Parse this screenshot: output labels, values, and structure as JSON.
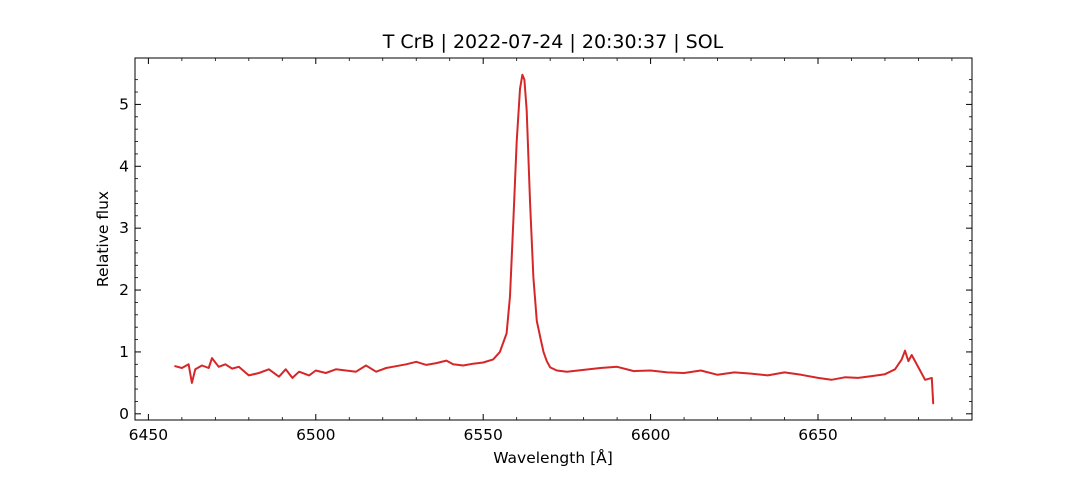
{
  "chart_data": {
    "type": "line",
    "title": "T CrB | 2022-07-24 | 20:30:37 | SOL",
    "xlabel": "Wavelength [Å]",
    "ylabel": "Relative flux",
    "xlim": [
      6446,
      6696
    ],
    "ylim": [
      -0.1,
      5.75
    ],
    "x_ticks": [
      6450,
      6500,
      6550,
      6600,
      6650
    ],
    "x_tick_labels": [
      "6450",
      "6500",
      "6550",
      "6600",
      "6650"
    ],
    "y_ticks": [
      0,
      1,
      2,
      3,
      4,
      5
    ],
    "y_tick_labels": [
      "0",
      "1",
      "2",
      "3",
      "4",
      "5"
    ],
    "grid": false,
    "legend": "none",
    "series": [
      {
        "color": "#d62728",
        "x": [
          6458,
          6460,
          6462,
          6463,
          6464,
          6466,
          6468,
          6469,
          6471,
          6473,
          6475,
          6477,
          6480,
          6483,
          6486,
          6489,
          6491,
          6493,
          6495,
          6498,
          6500,
          6503,
          6506,
          6509,
          6512,
          6515,
          6518,
          6521,
          6524,
          6527,
          6530,
          6533,
          6536,
          6539,
          6541,
          6544,
          6547,
          6550,
          6553,
          6555,
          6557,
          6558,
          6559,
          6560,
          6561,
          6561.7,
          6562.3,
          6563,
          6564,
          6565,
          6566,
          6567,
          6568,
          6569,
          6570,
          6572,
          6575,
          6580,
          6585,
          6590,
          6595,
          6600,
          6605,
          6610,
          6615,
          6620,
          6625,
          6630,
          6635,
          6640,
          6645,
          6650,
          6654,
          6658,
          6662,
          6666,
          6670,
          6673,
          6675,
          6676,
          6677,
          6678,
          6680,
          6682,
          6684,
          6684.4
        ],
        "y": [
          0.77,
          0.74,
          0.8,
          0.5,
          0.72,
          0.78,
          0.74,
          0.9,
          0.76,
          0.8,
          0.73,
          0.76,
          0.62,
          0.66,
          0.72,
          0.6,
          0.72,
          0.58,
          0.68,
          0.62,
          0.7,
          0.66,
          0.72,
          0.7,
          0.68,
          0.78,
          0.68,
          0.74,
          0.77,
          0.8,
          0.84,
          0.79,
          0.82,
          0.86,
          0.8,
          0.78,
          0.81,
          0.83,
          0.88,
          1.0,
          1.3,
          1.9,
          3.1,
          4.4,
          5.25,
          5.48,
          5.4,
          4.9,
          3.4,
          2.2,
          1.5,
          1.25,
          1.0,
          0.85,
          0.75,
          0.7,
          0.68,
          0.71,
          0.74,
          0.76,
          0.69,
          0.7,
          0.67,
          0.66,
          0.7,
          0.63,
          0.67,
          0.65,
          0.62,
          0.67,
          0.63,
          0.58,
          0.55,
          0.59,
          0.58,
          0.61,
          0.64,
          0.72,
          0.88,
          1.02,
          0.85,
          0.95,
          0.75,
          0.55,
          0.58,
          0.17
        ]
      }
    ]
  }
}
